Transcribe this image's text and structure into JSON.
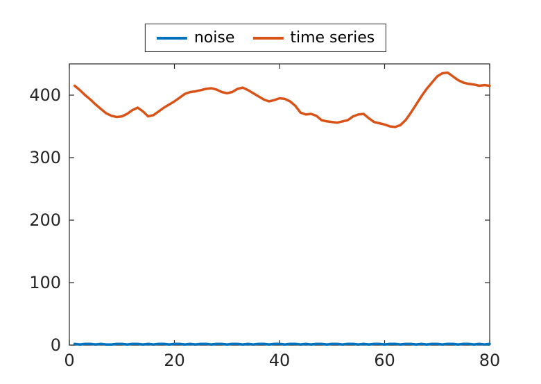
{
  "chart_data": {
    "type": "line",
    "title": "",
    "xlabel": "",
    "ylabel": "",
    "xlim": [
      0,
      80
    ],
    "ylim": [
      0,
      450
    ],
    "x_ticks": [
      0,
      20,
      40,
      60,
      80
    ],
    "y_ticks": [
      0,
      100,
      200,
      300,
      400
    ],
    "grid": false,
    "legend_position": "top-center-outside",
    "axis_color": "#262626",
    "x": [
      1,
      2,
      3,
      4,
      5,
      6,
      7,
      8,
      9,
      10,
      11,
      12,
      13,
      14,
      15,
      16,
      17,
      18,
      19,
      20,
      21,
      22,
      23,
      24,
      25,
      26,
      27,
      28,
      29,
      30,
      31,
      32,
      33,
      34,
      35,
      36,
      37,
      38,
      39,
      40,
      41,
      42,
      43,
      44,
      45,
      46,
      47,
      48,
      49,
      50,
      51,
      52,
      53,
      54,
      55,
      56,
      57,
      58,
      59,
      60,
      61,
      62,
      63,
      64,
      65,
      66,
      67,
      68,
      69,
      70,
      71,
      72,
      73,
      74,
      75,
      76,
      77,
      78,
      79,
      80
    ],
    "series": [
      {
        "name": "noise",
        "color": "#0072BD",
        "values": [
          2,
          1,
          2,
          2,
          1,
          2,
          1,
          1,
          2,
          2,
          1,
          2,
          2,
          1,
          2,
          1,
          2,
          2,
          1,
          2,
          2,
          1,
          2,
          1,
          2,
          2,
          1,
          2,
          2,
          1,
          2,
          2,
          1,
          2,
          1,
          2,
          2,
          1,
          2,
          2,
          1,
          2,
          2,
          1,
          2,
          1,
          2,
          2,
          1,
          2,
          2,
          1,
          2,
          2,
          1,
          2,
          1,
          2,
          2,
          1,
          2,
          2,
          1,
          2,
          2,
          1,
          2,
          1,
          2,
          2,
          1,
          2,
          2,
          1,
          2,
          2,
          1,
          2,
          1,
          2
        ]
      },
      {
        "name": "time series",
        "color": "#D95319",
        "values": [
          415,
          408,
          400,
          393,
          385,
          378,
          371,
          367,
          365,
          366,
          370,
          376,
          380,
          374,
          366,
          368,
          374,
          380,
          385,
          390,
          396,
          402,
          405,
          406,
          408,
          410,
          411,
          409,
          405,
          403,
          405,
          410,
          412,
          408,
          403,
          398,
          393,
          390,
          392,
          395,
          394,
          390,
          383,
          372,
          369,
          370,
          367,
          360,
          358,
          357,
          356,
          358,
          360,
          366,
          369,
          370,
          363,
          357,
          355,
          353,
          350,
          349,
          352,
          360,
          372,
          385,
          398,
          410,
          420,
          430,
          435,
          436,
          430,
          424,
          420,
          418,
          417,
          415,
          416,
          415
        ]
      }
    ]
  }
}
